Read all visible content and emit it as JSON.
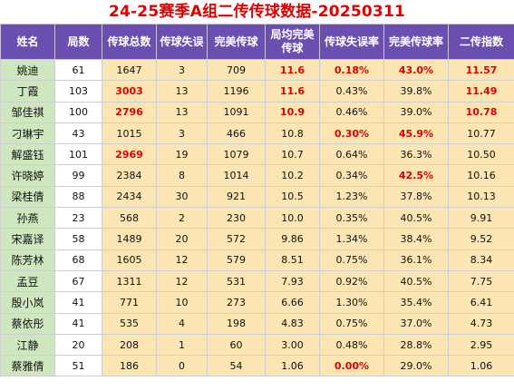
{
  "title": "24-25赛季A组二传传球数据-20250311",
  "headers": [
    "姓名",
    "局数",
    "传球总数",
    "传球失误",
    "完美传球",
    "局均完美传球",
    "传球失误率",
    "完美传球率",
    "二传指数"
  ],
  "rows": [
    {
      "name": "姚迪",
      "games": "61",
      "total": "1647",
      "errors": "3",
      "perfect": "709",
      "avg": "11.6",
      "err_rate": "0.18%",
      "perfect_rate": "43.0%",
      "index": "11.57"
    },
    {
      "name": "丁霞",
      "games": "103",
      "total": "3003",
      "errors": "13",
      "perfect": "1196",
      "avg": "11.6",
      "err_rate": "0.43%",
      "perfect_rate": "39.8%",
      "index": "11.49"
    },
    {
      "name": "邹佳祺",
      "games": "100",
      "total": "2796",
      "errors": "13",
      "perfect": "1091",
      "avg": "10.9",
      "err_rate": "0.46%",
      "perfect_rate": "39.0%",
      "index": "10.78"
    },
    {
      "name": "刁琳宇",
      "games": "43",
      "total": "1015",
      "errors": "3",
      "perfect": "466",
      "avg": "10.8",
      "err_rate": "0.30%",
      "perfect_rate": "45.9%",
      "index": "10.77"
    },
    {
      "name": "解盛钰",
      "games": "101",
      "total": "2969",
      "errors": "19",
      "perfect": "1079",
      "avg": "10.7",
      "err_rate": "0.64%",
      "perfect_rate": "36.3%",
      "index": "10.50"
    },
    {
      "name": "许晓婷",
      "games": "99",
      "total": "2384",
      "errors": "8",
      "perfect": "1014",
      "avg": "10.2",
      "err_rate": "0.34%",
      "perfect_rate": "42.5%",
      "index": "10.16"
    },
    {
      "name": "梁桂倩",
      "games": "88",
      "total": "2434",
      "errors": "30",
      "perfect": "921",
      "avg": "10.5",
      "err_rate": "1.23%",
      "perfect_rate": "37.8%",
      "index": "10.13"
    },
    {
      "name": "孙燕",
      "games": "23",
      "total": "568",
      "errors": "2",
      "perfect": "230",
      "avg": "10.0",
      "err_rate": "0.35%",
      "perfect_rate": "40.5%",
      "index": "9.91"
    },
    {
      "name": "宋嘉译",
      "games": "58",
      "total": "1489",
      "errors": "20",
      "perfect": "572",
      "avg": "9.86",
      "err_rate": "1.34%",
      "perfect_rate": "38.4%",
      "index": "9.52"
    },
    {
      "name": "陈芳林",
      "games": "68",
      "total": "1605",
      "errors": "12",
      "perfect": "579",
      "avg": "8.51",
      "err_rate": "0.75%",
      "perfect_rate": "36.1%",
      "index": "8.34"
    },
    {
      "name": "孟豆",
      "games": "67",
      "total": "1311",
      "errors": "12",
      "perfect": "531",
      "avg": "7.93",
      "err_rate": "0.92%",
      "perfect_rate": "40.5%",
      "index": "7.75"
    },
    {
      "name": "殷小岚",
      "games": "41",
      "total": "771",
      "errors": "10",
      "perfect": "273",
      "avg": "6.66",
      "err_rate": "1.30%",
      "perfect_rate": "35.4%",
      "index": "6.41"
    },
    {
      "name": "蔡依彤",
      "games": "41",
      "total": "535",
      "errors": "4",
      "perfect": "198",
      "avg": "4.83",
      "err_rate": "0.75%",
      "perfect_rate": "37.0%",
      "index": "4.73"
    },
    {
      "name": "江静",
      "games": "20",
      "total": "208",
      "errors": "1",
      "perfect": "60",
      "avg": "3.00",
      "err_rate": "0.48%",
      "perfect_rate": "28.8%",
      "index": "2.95"
    },
    {
      "name": "蔡雅倩",
      "games": "51",
      "total": "186",
      "errors": "0",
      "perfect": "54",
      "avg": "1.06",
      "err_rate": "0.00%",
      "perfect_rate": "29.0%",
      "index": "1.06"
    }
  ],
  "highlight_color": "#e00000",
  "highlights": {
    "total": [
      1,
      2,
      4
    ],
    "avg": [
      0,
      1,
      2
    ],
    "err_rate": [
      0,
      3,
      14
    ],
    "perfect_rate": [
      0,
      3,
      5
    ],
    "index": [
      0,
      1,
      2
    ]
  }
}
